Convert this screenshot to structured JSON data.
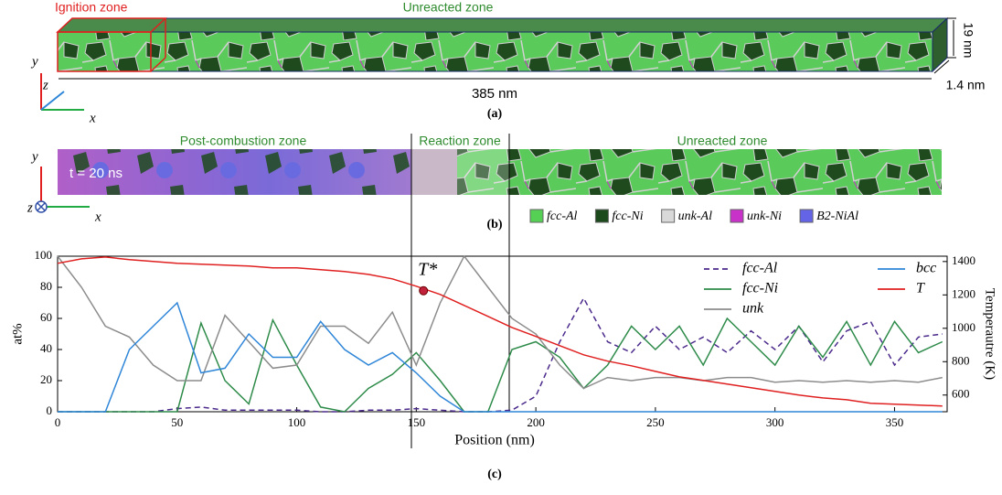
{
  "panel_a": {
    "ignition": "Ignition zone",
    "unreacted": "Unreacted zone",
    "height": "19 nm",
    "depth": "1.4 nm",
    "length": "385 nm",
    "axis_y": "y",
    "axis_z": "z",
    "axis_x": "x",
    "label": "(a)"
  },
  "panel_b": {
    "post": "Post-combustion zone",
    "reaction": "Reaction zone",
    "unreacted": "Unreacted zone",
    "time": "t = 20 ns",
    "axis_y": "y",
    "axis_z": "z",
    "axis_x": "x",
    "label": "(b)",
    "phases": [
      {
        "name": "fcc-Al",
        "color": "#55d055"
      },
      {
        "name": "fcc-Ni",
        "color": "#1d4a1d"
      },
      {
        "name": "unk-Al",
        "color": "#d9d9d9"
      },
      {
        "name": "unk-Ni",
        "color": "#c832c8"
      },
      {
        "name": "B2-NiAl",
        "color": "#6464e6"
      }
    ]
  },
  "chart_data": {
    "type": "line",
    "label": "(c)",
    "xlabel": "Position (nm)",
    "ylabel": "at%",
    "y2label": "Temperautre (K)",
    "xlim": [
      0,
      372
    ],
    "xticks": [
      0,
      50,
      100,
      150,
      200,
      250,
      300,
      350
    ],
    "ylim": [
      0,
      100
    ],
    "yticks": [
      0,
      20,
      40,
      60,
      80,
      100
    ],
    "y2lim": [
      500,
      1432
    ],
    "y2ticks": [
      600,
      800,
      1000,
      1200,
      1400
    ],
    "annotation": {
      "text": "T*",
      "x": 153,
      "y": 1225,
      "axis": "y2",
      "color": "#c0203a"
    },
    "x": [
      0,
      10,
      20,
      30,
      40,
      50,
      60,
      70,
      80,
      90,
      100,
      110,
      120,
      130,
      140,
      150,
      160,
      170,
      180,
      190,
      200,
      210,
      220,
      230,
      240,
      250,
      260,
      270,
      280,
      290,
      300,
      310,
      320,
      330,
      340,
      350,
      360,
      370
    ],
    "series": [
      {
        "name": "fcc-Al",
        "color": "#4b2a8c",
        "dashed": true,
        "values": [
          0,
          0,
          0,
          0,
          0,
          2,
          3,
          1,
          1,
          1,
          1,
          0,
          0,
          1,
          1,
          2,
          1,
          0,
          0,
          1,
          10,
          45,
          73,
          45,
          38,
          55,
          40,
          48,
          38,
          52,
          40,
          55,
          32,
          52,
          58,
          30,
          48,
          50
        ]
      },
      {
        "name": "fcc-Ni",
        "color": "#2e8b4a",
        "values": [
          0,
          0,
          0,
          0,
          0,
          0,
          57,
          20,
          5,
          59,
          30,
          3,
          0,
          15,
          24,
          38,
          20,
          0,
          0,
          40,
          45,
          35,
          15,
          30,
          55,
          40,
          55,
          30,
          60,
          45,
          30,
          55,
          35,
          58,
          30,
          58,
          38,
          45
        ]
      },
      {
        "name": "unk",
        "color": "#8c8c8c",
        "values": [
          100,
          80,
          55,
          48,
          30,
          20,
          20,
          62,
          45,
          28,
          30,
          55,
          55,
          44,
          64,
          30,
          70,
          100,
          80,
          60,
          50,
          30,
          15,
          22,
          20,
          22,
          22,
          20,
          22,
          22,
          19,
          20,
          19,
          20,
          19,
          20,
          19,
          22
        ]
      },
      {
        "name": "bcc",
        "color": "#2f86d8",
        "values": [
          0,
          0,
          0,
          40,
          55,
          70,
          25,
          28,
          50,
          35,
          35,
          58,
          40,
          30,
          38,
          25,
          10,
          0,
          0,
          0,
          0,
          0,
          0,
          0,
          0,
          0,
          0,
          0,
          0,
          0,
          0,
          0,
          0,
          0,
          0,
          0,
          0,
          0
        ]
      },
      {
        "name": "T",
        "color": "#e02020",
        "axis": "y2",
        "values": [
          1389,
          1416,
          1427,
          1411,
          1400,
          1389,
          1384,
          1378,
          1373,
          1362,
          1362,
          1351,
          1340,
          1323,
          1296,
          1252,
          1203,
          1137,
          1071,
          1005,
          951,
          896,
          841,
          803,
          775,
          742,
          709,
          688,
          666,
          644,
          622,
          600,
          583,
          572,
          551,
          545,
          540,
          534
        ]
      }
    ]
  }
}
